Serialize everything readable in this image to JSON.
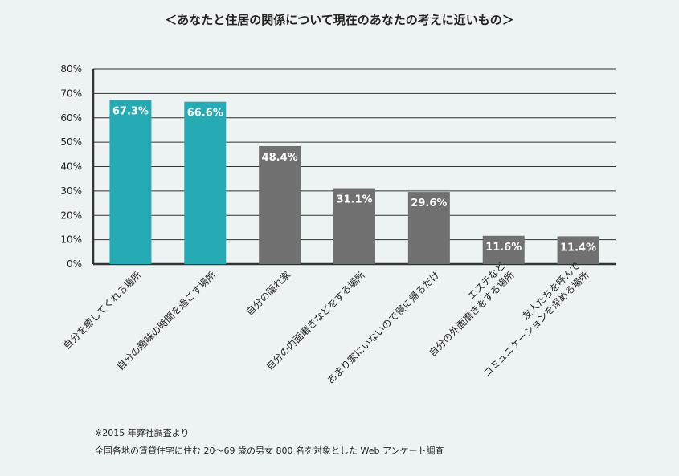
{
  "chart_data": {
    "type": "bar",
    "title": "＜あなたと住居の関係について現在のあなたの考えに近いもの＞",
    "categories": [
      [
        "自分を癒してくれる場所"
      ],
      [
        "自分の趣味の時間を過ごす場所"
      ],
      [
        "自分の隠れ家"
      ],
      [
        "自分の内面磨きなどをする場所"
      ],
      [
        "あまり家にいないので寝に帰るだけ"
      ],
      [
        "エステなど",
        "自分の外面磨きをする場所"
      ],
      [
        "友人たちを呼んで",
        "コミュニケーションを深める場所"
      ]
    ],
    "values": [
      67.3,
      66.6,
      48.4,
      31.1,
      29.6,
      11.6,
      11.4
    ],
    "value_labels": [
      "67.3%",
      "66.6%",
      "48.4%",
      "31.1%",
      "29.6%",
      "11.6%",
      "11.4%"
    ],
    "ylim": [
      0,
      80
    ],
    "yticks": [
      "0%",
      "10%",
      "20%",
      "30%",
      "40%",
      "50%",
      "60%",
      "70%",
      "80%"
    ],
    "grid": true,
    "colors": {
      "highlight": "#26aab3",
      "default": "#707070",
      "axis": "#333333",
      "grid": "#333333"
    },
    "highlight_count": 2
  },
  "footnotes": {
    "line1": "※2015 年弊社調査より",
    "line2": "全国各地の賃貸住宅に住む 20〜69 歳の男女 800 名を対象とした Web アンケート調査"
  }
}
